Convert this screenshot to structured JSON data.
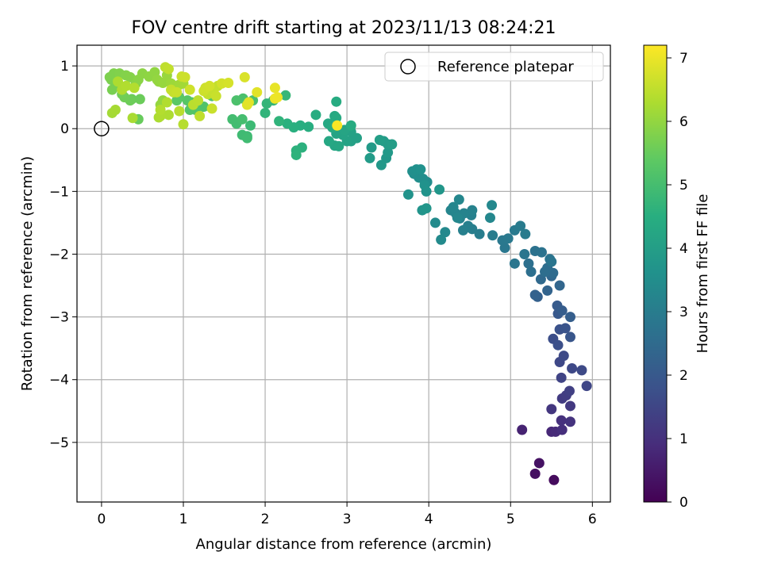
{
  "chart_data": {
    "type": "scatter",
    "title": "FOV centre drift starting at 2023/11/13 08:24:21",
    "xlabel": "Angular distance from reference (arcmin)",
    "ylabel": "Rotation from reference (arcmin)",
    "xlim": [
      -0.3,
      6.22
    ],
    "ylim": [
      -5.95,
      1.33
    ],
    "xticks": [
      0,
      1,
      2,
      3,
      4,
      5,
      6
    ],
    "xtick_labels": [
      "0",
      "1",
      "2",
      "3",
      "4",
      "5",
      "6"
    ],
    "yticks": [
      1,
      0,
      -1,
      -2,
      -3,
      -4,
      -5
    ],
    "ytick_labels": [
      "1",
      "0",
      "−1",
      "−2",
      "−3",
      "−4",
      "−5"
    ],
    "grid": true,
    "legend": {
      "position": "top-right",
      "entries": [
        {
          "label": "Reference platepar",
          "marker": "open-circle",
          "color": "#000000"
        }
      ]
    },
    "colorbar": {
      "label": "Hours from first FF file",
      "colormap": "viridis",
      "range": [
        0,
        7.2
      ],
      "ticks": [
        0,
        1,
        2,
        3,
        4,
        5,
        6,
        7
      ],
      "tick_labels": [
        "0",
        "1",
        "2",
        "3",
        "4",
        "5",
        "6",
        "7"
      ]
    },
    "reference": {
      "x": 0,
      "y": 0
    },
    "series": [
      {
        "points": [
          [
            5.53,
            -5.6
          ],
          [
            5.3,
            -5.5
          ],
          [
            5.35,
            -5.33
          ],
          [
            5.14,
            -4.8
          ],
          [
            5.5,
            -4.83
          ],
          [
            5.55,
            -4.83
          ],
          [
            5.63,
            -4.8
          ],
          [
            5.62,
            -4.65
          ],
          [
            5.73,
            -4.67
          ],
          [
            5.5,
            -4.47
          ],
          [
            5.63,
            -4.3
          ],
          [
            5.73,
            -4.42
          ],
          [
            5.68,
            -4.25
          ],
          [
            5.72,
            -4.18
          ],
          [
            5.62,
            -3.97
          ],
          [
            5.93,
            -4.1
          ],
          [
            5.6,
            -3.72
          ],
          [
            5.65,
            -3.62
          ],
          [
            5.75,
            -3.82
          ],
          [
            5.87,
            -3.85
          ],
          [
            5.52,
            -3.35
          ],
          [
            5.58,
            -3.45
          ],
          [
            5.6,
            -3.2
          ],
          [
            5.67,
            -3.18
          ],
          [
            5.73,
            -3.32
          ],
          [
            5.58,
            -2.95
          ],
          [
            5.57,
            -2.82
          ],
          [
            5.63,
            -2.9
          ],
          [
            5.73,
            -3.0
          ],
          [
            5.33,
            -2.68
          ],
          [
            5.3,
            -2.65
          ],
          [
            5.45,
            -2.58
          ],
          [
            5.6,
            -2.5
          ],
          [
            5.5,
            -2.35
          ],
          [
            5.37,
            -2.4
          ],
          [
            5.52,
            -2.3
          ],
          [
            5.45,
            -2.22
          ],
          [
            5.42,
            -2.28
          ],
          [
            5.25,
            -2.28
          ],
          [
            5.22,
            -2.15
          ],
          [
            5.3,
            -1.95
          ],
          [
            5.38,
            -1.97
          ],
          [
            5.48,
            -2.08
          ],
          [
            5.5,
            -2.12
          ],
          [
            5.17,
            -2.0
          ],
          [
            5.05,
            -2.15
          ],
          [
            4.93,
            -1.9
          ],
          [
            4.9,
            -1.78
          ],
          [
            4.97,
            -1.75
          ],
          [
            5.05,
            -1.62
          ],
          [
            5.12,
            -1.55
          ],
          [
            5.18,
            -1.68
          ],
          [
            4.78,
            -1.7
          ],
          [
            4.62,
            -1.68
          ],
          [
            4.53,
            -1.6
          ],
          [
            4.48,
            -1.55
          ],
          [
            4.42,
            -1.62
          ],
          [
            4.52,
            -1.38
          ],
          [
            4.53,
            -1.3
          ],
          [
            4.38,
            -1.43
          ],
          [
            4.43,
            -1.35
          ],
          [
            4.33,
            -1.35
          ],
          [
            4.27,
            -1.3
          ],
          [
            4.3,
            -1.25
          ],
          [
            4.37,
            -1.13
          ],
          [
            4.35,
            -1.42
          ],
          [
            4.75,
            -1.42
          ],
          [
            4.77,
            -1.22
          ],
          [
            4.2,
            -1.65
          ],
          [
            4.15,
            -1.77
          ],
          [
            4.08,
            -1.5
          ]
        ],
        "hours": [
          0.2,
          0.3,
          0.35,
          0.7,
          0.8,
          0.85,
          0.95,
          1.0,
          1.05,
          1.15,
          1.25,
          1.2,
          1.3,
          1.35,
          1.45,
          1.5,
          1.55,
          1.6,
          1.55,
          1.6,
          1.7,
          1.75,
          1.8,
          1.85,
          1.9,
          2.0,
          2.05,
          2.1,
          2.15,
          2.2,
          2.25,
          2.3,
          2.35,
          2.4,
          2.45,
          2.5,
          2.55,
          2.6,
          2.62,
          2.65,
          2.7,
          2.72,
          2.75,
          2.78,
          2.8,
          2.82,
          2.85,
          2.88,
          2.9,
          2.92,
          2.95,
          2.97,
          3.0,
          3.02,
          3.05,
          3.07,
          3.1,
          3.12,
          3.15,
          3.17,
          3.2,
          3.22,
          3.25,
          3.27,
          3.3,
          3.3,
          3.32,
          3.35,
          3.37,
          3.4,
          3.42
        ]
      },
      {
        "points": [
          [
            3.98,
            -0.85
          ],
          [
            3.93,
            -0.8
          ],
          [
            3.88,
            -0.78
          ],
          [
            3.82,
            -0.72
          ],
          [
            3.8,
            -0.68
          ],
          [
            3.85,
            -0.65
          ],
          [
            3.9,
            -0.65
          ],
          [
            3.95,
            -0.9
          ],
          [
            3.97,
            -1.0
          ],
          [
            3.75,
            -1.05
          ],
          [
            3.92,
            -1.3
          ],
          [
            3.97,
            -1.27
          ],
          [
            4.13,
            -0.97
          ],
          [
            3.48,
            -0.47
          ],
          [
            3.42,
            -0.58
          ],
          [
            3.5,
            -0.38
          ],
          [
            3.3,
            -0.3
          ],
          [
            3.28,
            -0.47
          ],
          [
            3.45,
            -0.2
          ],
          [
            3.5,
            -0.25
          ],
          [
            3.55,
            -0.25
          ],
          [
            3.4,
            -0.18
          ],
          [
            3.05,
            -0.2
          ],
          [
            3.12,
            -0.15
          ],
          [
            3.05,
            -0.05
          ],
          [
            3.0,
            -0.2
          ],
          [
            2.95,
            -0.1
          ],
          [
            2.87,
            -0.08
          ],
          [
            2.97,
            -0.02
          ],
          [
            2.85,
            -0.27
          ],
          [
            2.9,
            -0.28
          ],
          [
            2.78,
            -0.2
          ],
          [
            2.77,
            0.08
          ],
          [
            2.85,
            0.2
          ],
          [
            2.82,
            0.02
          ],
          [
            2.87,
            0.17
          ],
          [
            2.87,
            0.43
          ],
          [
            3.05,
            0.05
          ],
          [
            2.62,
            0.22
          ],
          [
            2.53,
            0.03
          ],
          [
            2.43,
            0.05
          ],
          [
            2.35,
            0.02
          ],
          [
            2.27,
            0.08
          ],
          [
            2.45,
            -0.3
          ],
          [
            2.38,
            -0.35
          ],
          [
            2.38,
            -0.42
          ],
          [
            2.17,
            0.12
          ],
          [
            2.0,
            0.25
          ],
          [
            2.02,
            0.4
          ],
          [
            2.1,
            0.45
          ],
          [
            2.25,
            0.53
          ]
        ],
        "hours": [
          3.45,
          3.47,
          3.5,
          3.52,
          3.55,
          3.57,
          3.6,
          3.62,
          3.65,
          3.67,
          3.7,
          3.72,
          3.75,
          3.8,
          3.82,
          3.85,
          3.87,
          3.9,
          3.92,
          3.95,
          3.97,
          4.0,
          4.05,
          4.07,
          4.1,
          4.12,
          4.15,
          4.17,
          4.2,
          4.22,
          4.25,
          4.27,
          4.3,
          4.32,
          4.35,
          4.37,
          4.4,
          4.42,
          4.45,
          4.47,
          4.5,
          4.52,
          4.55,
          4.57,
          4.6,
          4.62,
          4.65,
          4.67,
          4.7,
          4.72,
          4.75
        ]
      },
      {
        "points": [
          [
            1.82,
            0.05
          ],
          [
            1.78,
            -0.12
          ],
          [
            1.72,
            -0.1
          ],
          [
            1.78,
            -0.15
          ],
          [
            1.65,
            0.08
          ],
          [
            1.6,
            0.15
          ],
          [
            1.72,
            0.15
          ],
          [
            1.85,
            0.45
          ],
          [
            1.73,
            0.48
          ],
          [
            1.65,
            0.45
          ],
          [
            1.35,
            0.52
          ],
          [
            1.25,
            0.35
          ],
          [
            1.15,
            0.3
          ],
          [
            1.08,
            0.3
          ],
          [
            1.1,
            0.42
          ],
          [
            1.05,
            0.45
          ],
          [
            0.95,
            0.5
          ],
          [
            0.92,
            0.45
          ],
          [
            0.45,
            0.15
          ],
          [
            0.37,
            0.47
          ],
          [
            0.47,
            0.47
          ],
          [
            0.35,
            0.45
          ],
          [
            0.28,
            0.5
          ],
          [
            0.25,
            0.55
          ],
          [
            0.2,
            0.68
          ],
          [
            0.17,
            0.7
          ],
          [
            0.13,
            0.62
          ],
          [
            0.12,
            0.78
          ],
          [
            0.1,
            0.82
          ],
          [
            0.15,
            0.88
          ],
          [
            0.22,
            0.88
          ],
          [
            0.3,
            0.85
          ],
          [
            0.35,
            0.82
          ],
          [
            0.42,
            0.72
          ],
          [
            0.45,
            0.78
          ],
          [
            0.5,
            0.88
          ],
          [
            0.58,
            0.83
          ],
          [
            0.65,
            0.9
          ],
          [
            0.68,
            0.78
          ],
          [
            0.7,
            0.75
          ],
          [
            0.75,
            0.73
          ],
          [
            0.8,
            0.85
          ],
          [
            0.85,
            0.72
          ],
          [
            0.9,
            0.68
          ],
          [
            0.95,
            0.7
          ],
          [
            1.0,
            0.72
          ],
          [
            0.75,
            0.45
          ],
          [
            0.72,
            0.38
          ]
        ],
        "hours": [
          4.85,
          4.87,
          4.9,
          4.92,
          4.95,
          4.97,
          5.0,
          5.05,
          5.07,
          5.1,
          5.15,
          5.17,
          5.2,
          5.22,
          5.25,
          5.27,
          5.3,
          5.32,
          5.5,
          5.52,
          5.55,
          5.57,
          5.6,
          5.62,
          5.65,
          5.67,
          5.7,
          5.72,
          5.75,
          5.77,
          5.8,
          5.82,
          5.85,
          5.87,
          5.9,
          5.92,
          5.95,
          5.97,
          6.0,
          6.02,
          6.05,
          6.07,
          6.1,
          6.12,
          6.15,
          6.17,
          6.0,
          6.02
        ]
      },
      {
        "points": [
          [
            0.13,
            0.25
          ],
          [
            0.17,
            0.3
          ],
          [
            0.38,
            0.17
          ],
          [
            0.7,
            0.18
          ],
          [
            0.82,
            0.22
          ],
          [
            0.72,
            0.2
          ],
          [
            0.8,
            0.42
          ],
          [
            0.72,
            0.3
          ],
          [
            1.0,
            0.07
          ],
          [
            0.95,
            0.28
          ],
          [
            1.12,
            0.38
          ],
          [
            1.18,
            0.45
          ],
          [
            1.2,
            0.2
          ],
          [
            1.3,
            0.55
          ],
          [
            1.42,
            0.68
          ],
          [
            1.37,
            0.58
          ],
          [
            1.4,
            0.52
          ],
          [
            1.35,
            0.32
          ],
          [
            1.25,
            0.6
          ],
          [
            1.27,
            0.65
          ],
          [
            1.32,
            0.68
          ],
          [
            1.47,
            0.72
          ],
          [
            1.55,
            0.73
          ],
          [
            0.78,
            0.98
          ],
          [
            0.82,
            0.95
          ],
          [
            0.85,
            0.62
          ],
          [
            0.88,
            0.58
          ],
          [
            0.92,
            0.58
          ],
          [
            0.98,
            0.83
          ],
          [
            1.02,
            0.82
          ],
          [
            1.08,
            0.62
          ],
          [
            0.2,
            0.75
          ],
          [
            0.25,
            0.62
          ],
          [
            0.3,
            0.68
          ],
          [
            0.4,
            0.65
          ],
          [
            1.75,
            0.82
          ],
          [
            1.78,
            0.38
          ],
          [
            1.9,
            0.58
          ],
          [
            1.8,
            0.42
          ],
          [
            2.12,
            0.65
          ],
          [
            2.12,
            0.48
          ],
          [
            2.15,
            0.5
          ],
          [
            2.88,
            0.05
          ]
        ],
        "hours": [
          6.2,
          6.22,
          6.25,
          6.27,
          6.3,
          6.32,
          6.35,
          6.37,
          6.4,
          6.42,
          6.45,
          6.47,
          6.5,
          6.52,
          6.55,
          6.57,
          6.6,
          6.62,
          6.65,
          6.67,
          6.7,
          6.72,
          6.75,
          6.5,
          6.52,
          6.55,
          6.57,
          6.6,
          6.62,
          6.65,
          6.67,
          6.3,
          6.32,
          6.35,
          6.37,
          6.8,
          6.85,
          6.88,
          6.9,
          6.95,
          7.0,
          7.02,
          7.15
        ]
      }
    ]
  }
}
